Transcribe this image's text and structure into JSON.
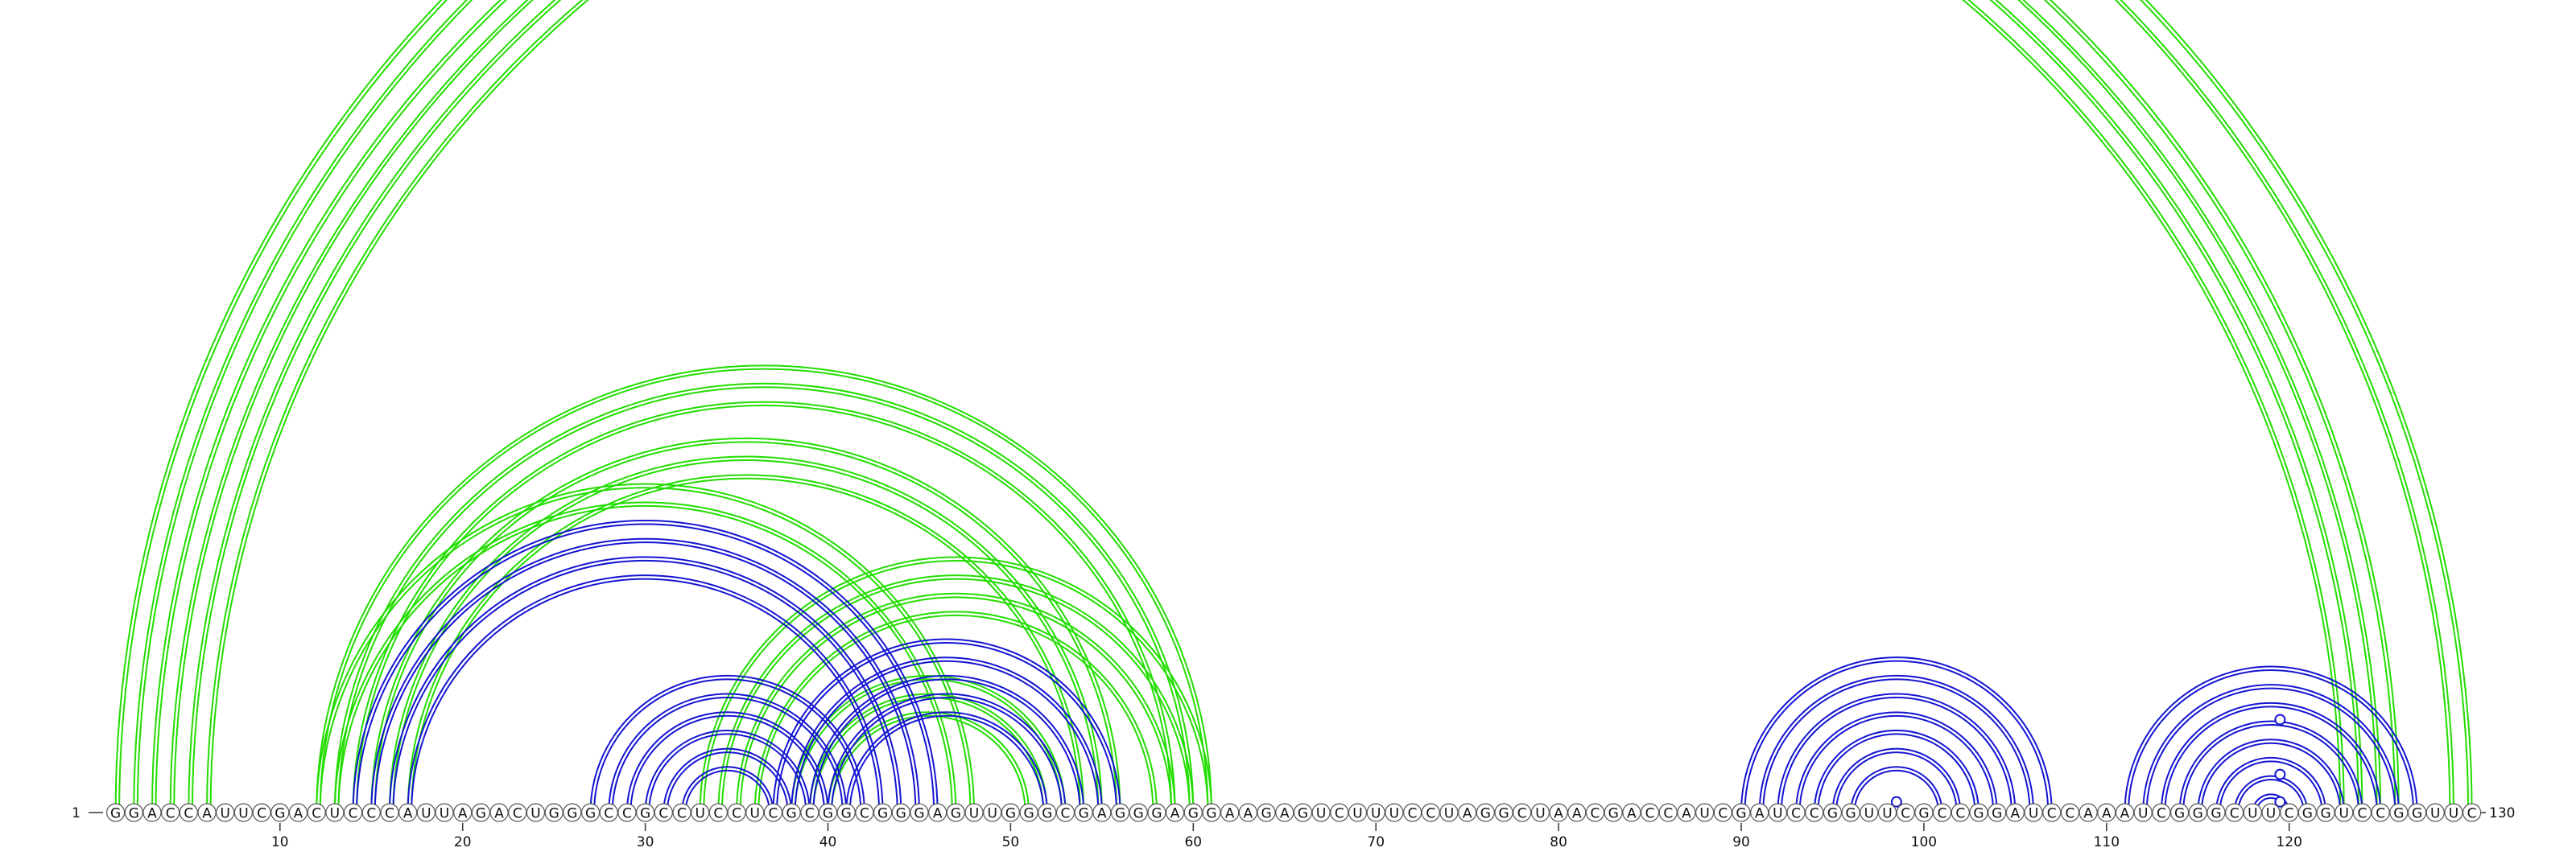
{
  "diagram": {
    "sequence": "GGACCAUUCGACUCCCAUUAGACUGGGCCGCCUCCUCGCGGCGGGAGUUGGGCGAGGGAGGAAGAGUCUUUCCUAGGCUAACGACCAUCGAUCCGGUUCGCCGGAUCCAAAUCGGGCUUCGGUCCGGUUC",
    "start_label": "1",
    "end_label": "130",
    "tick_labels": [
      "10",
      "20",
      "30",
      "40",
      "50",
      "60",
      "70",
      "80",
      "90",
      "100",
      "110",
      "120"
    ],
    "colors": {
      "green": "#22dd00",
      "blue": "#1414d2"
    },
    "helices": [
      {
        "color": "green",
        "start": 1,
        "end": 130,
        "length": 2
      },
      {
        "color": "green",
        "start": 3,
        "end": 126,
        "length": 2
      },
      {
        "color": "green",
        "start": 5,
        "end": 124,
        "length": 2
      },
      {
        "color": "green",
        "start": 12,
        "end": 61,
        "length": 3
      },
      {
        "color": "green",
        "start": 15,
        "end": 56,
        "length": 3
      },
      {
        "color": "green",
        "start": 12,
        "end": 48,
        "length": 2
      },
      {
        "color": "green",
        "start": 33,
        "end": 61,
        "length": 4
      },
      {
        "color": "green",
        "start": 38,
        "end": 53,
        "length": 3
      },
      {
        "color": "blue",
        "start": 14,
        "end": 46,
        "length": 4
      },
      {
        "color": "blue",
        "start": 27,
        "end": 42,
        "length": 6
      },
      {
        "color": "blue",
        "start": 37,
        "end": 56,
        "length": 5
      },
      {
        "color": "blue",
        "start": 90,
        "end": 107,
        "length": 7
      },
      {
        "color": "blue",
        "start": 111,
        "end": 127,
        "length": 8
      }
    ],
    "markers": [
      {
        "color": "green",
        "position": 65.5,
        "span": 125
      },
      {
        "color": "blue",
        "position": 98.5,
        "span": 1
      },
      {
        "color": "blue",
        "position": 119.5,
        "span": 1
      },
      {
        "color": "blue",
        "position": 119.5,
        "span": 4
      },
      {
        "color": "blue",
        "position": 119.5,
        "span": 10
      }
    ]
  }
}
